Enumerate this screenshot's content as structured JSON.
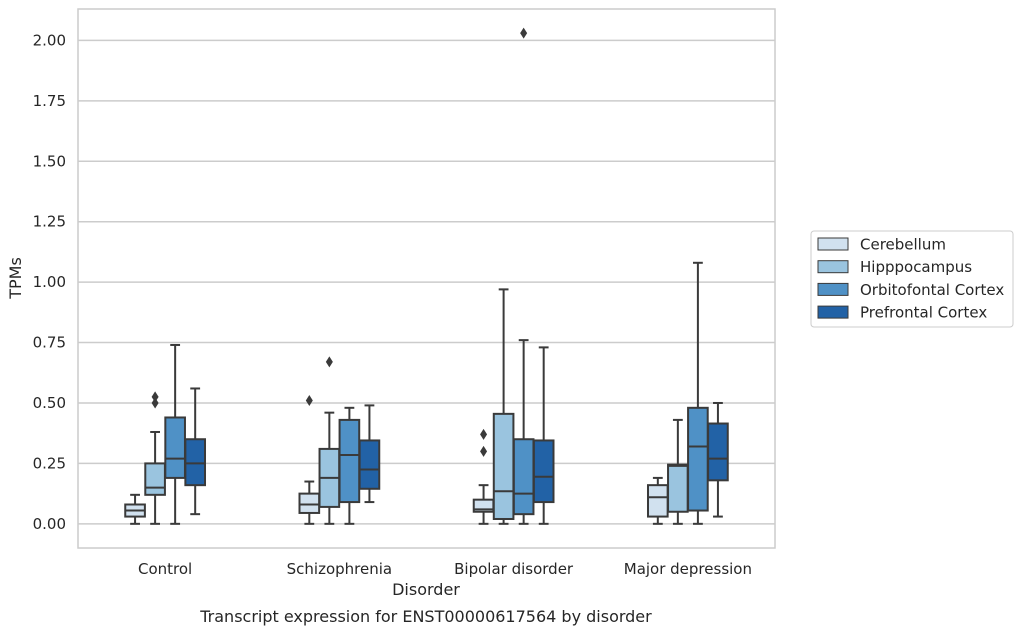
{
  "chart_data": {
    "type": "boxplot",
    "title": "",
    "caption": "Transcript expression for ENST00000617564 by disorder",
    "xlabel": "Disorder",
    "ylabel": "TPMs",
    "ylim": [
      -0.1,
      2.13
    ],
    "yticks": [
      "0.00",
      "0.25",
      "0.50",
      "0.75",
      "1.00",
      "1.25",
      "1.50",
      "1.75",
      "2.00"
    ],
    "categories": [
      "Control",
      "Schizophrenia",
      "Bipolar disorder",
      "Major depression"
    ],
    "grid": "horizontal",
    "legend_position": "right",
    "series": [
      {
        "name": "Cerebellum",
        "color": "#d1e1ef",
        "boxes": [
          {
            "whislo": 0.0,
            "q1": 0.03,
            "med": 0.055,
            "q3": 0.08,
            "whishi": 0.12,
            "fliers": []
          },
          {
            "whislo": 0.0,
            "q1": 0.045,
            "med": 0.08,
            "q3": 0.125,
            "whishi": 0.175,
            "fliers": [
              0.51
            ]
          },
          {
            "whislo": 0.0,
            "q1": 0.05,
            "med": 0.06,
            "q3": 0.1,
            "whishi": 0.16,
            "fliers": [
              0.3,
              0.37
            ]
          },
          {
            "whislo": 0.0,
            "q1": 0.03,
            "med": 0.11,
            "q3": 0.16,
            "whishi": 0.19,
            "fliers": []
          }
        ]
      },
      {
        "name": "Hipppocampus",
        "color": "#9ac4df",
        "boxes": [
          {
            "whislo": 0.0,
            "q1": 0.12,
            "med": 0.15,
            "q3": 0.25,
            "whishi": 0.38,
            "fliers": [
              0.5,
              0.525
            ]
          },
          {
            "whislo": 0.0,
            "q1": 0.07,
            "med": 0.19,
            "q3": 0.31,
            "whishi": 0.46,
            "fliers": [
              0.67
            ]
          },
          {
            "whislo": 0.0,
            "q1": 0.02,
            "med": 0.135,
            "q3": 0.455,
            "whishi": 0.97,
            "fliers": []
          },
          {
            "whislo": 0.0,
            "q1": 0.05,
            "med": 0.24,
            "q3": 0.245,
            "whishi": 0.43,
            "fliers": []
          }
        ]
      },
      {
        "name": "Orbitofontal Cortex",
        "color": "#4f91c6",
        "boxes": [
          {
            "whislo": 0.0,
            "q1": 0.19,
            "med": 0.27,
            "q3": 0.44,
            "whishi": 0.74,
            "fliers": []
          },
          {
            "whislo": 0.0,
            "q1": 0.09,
            "med": 0.285,
            "q3": 0.43,
            "whishi": 0.48,
            "fliers": []
          },
          {
            "whislo": 0.0,
            "q1": 0.04,
            "med": 0.125,
            "q3": 0.35,
            "whishi": 0.76,
            "fliers": [
              2.03
            ]
          },
          {
            "whislo": 0.0,
            "q1": 0.055,
            "med": 0.32,
            "q3": 0.48,
            "whishi": 1.08,
            "fliers": []
          }
        ]
      },
      {
        "name": "Prefrontal Cortex",
        "color": "#2262a6",
        "boxes": [
          {
            "whislo": 0.04,
            "q1": 0.16,
            "med": 0.25,
            "q3": 0.35,
            "whishi": 0.56,
            "fliers": []
          },
          {
            "whislo": 0.09,
            "q1": 0.145,
            "med": 0.225,
            "q3": 0.345,
            "whishi": 0.49,
            "fliers": []
          },
          {
            "whislo": 0.0,
            "q1": 0.09,
            "med": 0.195,
            "q3": 0.345,
            "whishi": 0.73,
            "fliers": []
          },
          {
            "whislo": 0.03,
            "q1": 0.18,
            "med": 0.27,
            "q3": 0.415,
            "whishi": 0.5,
            "fliers": []
          }
        ]
      }
    ]
  }
}
